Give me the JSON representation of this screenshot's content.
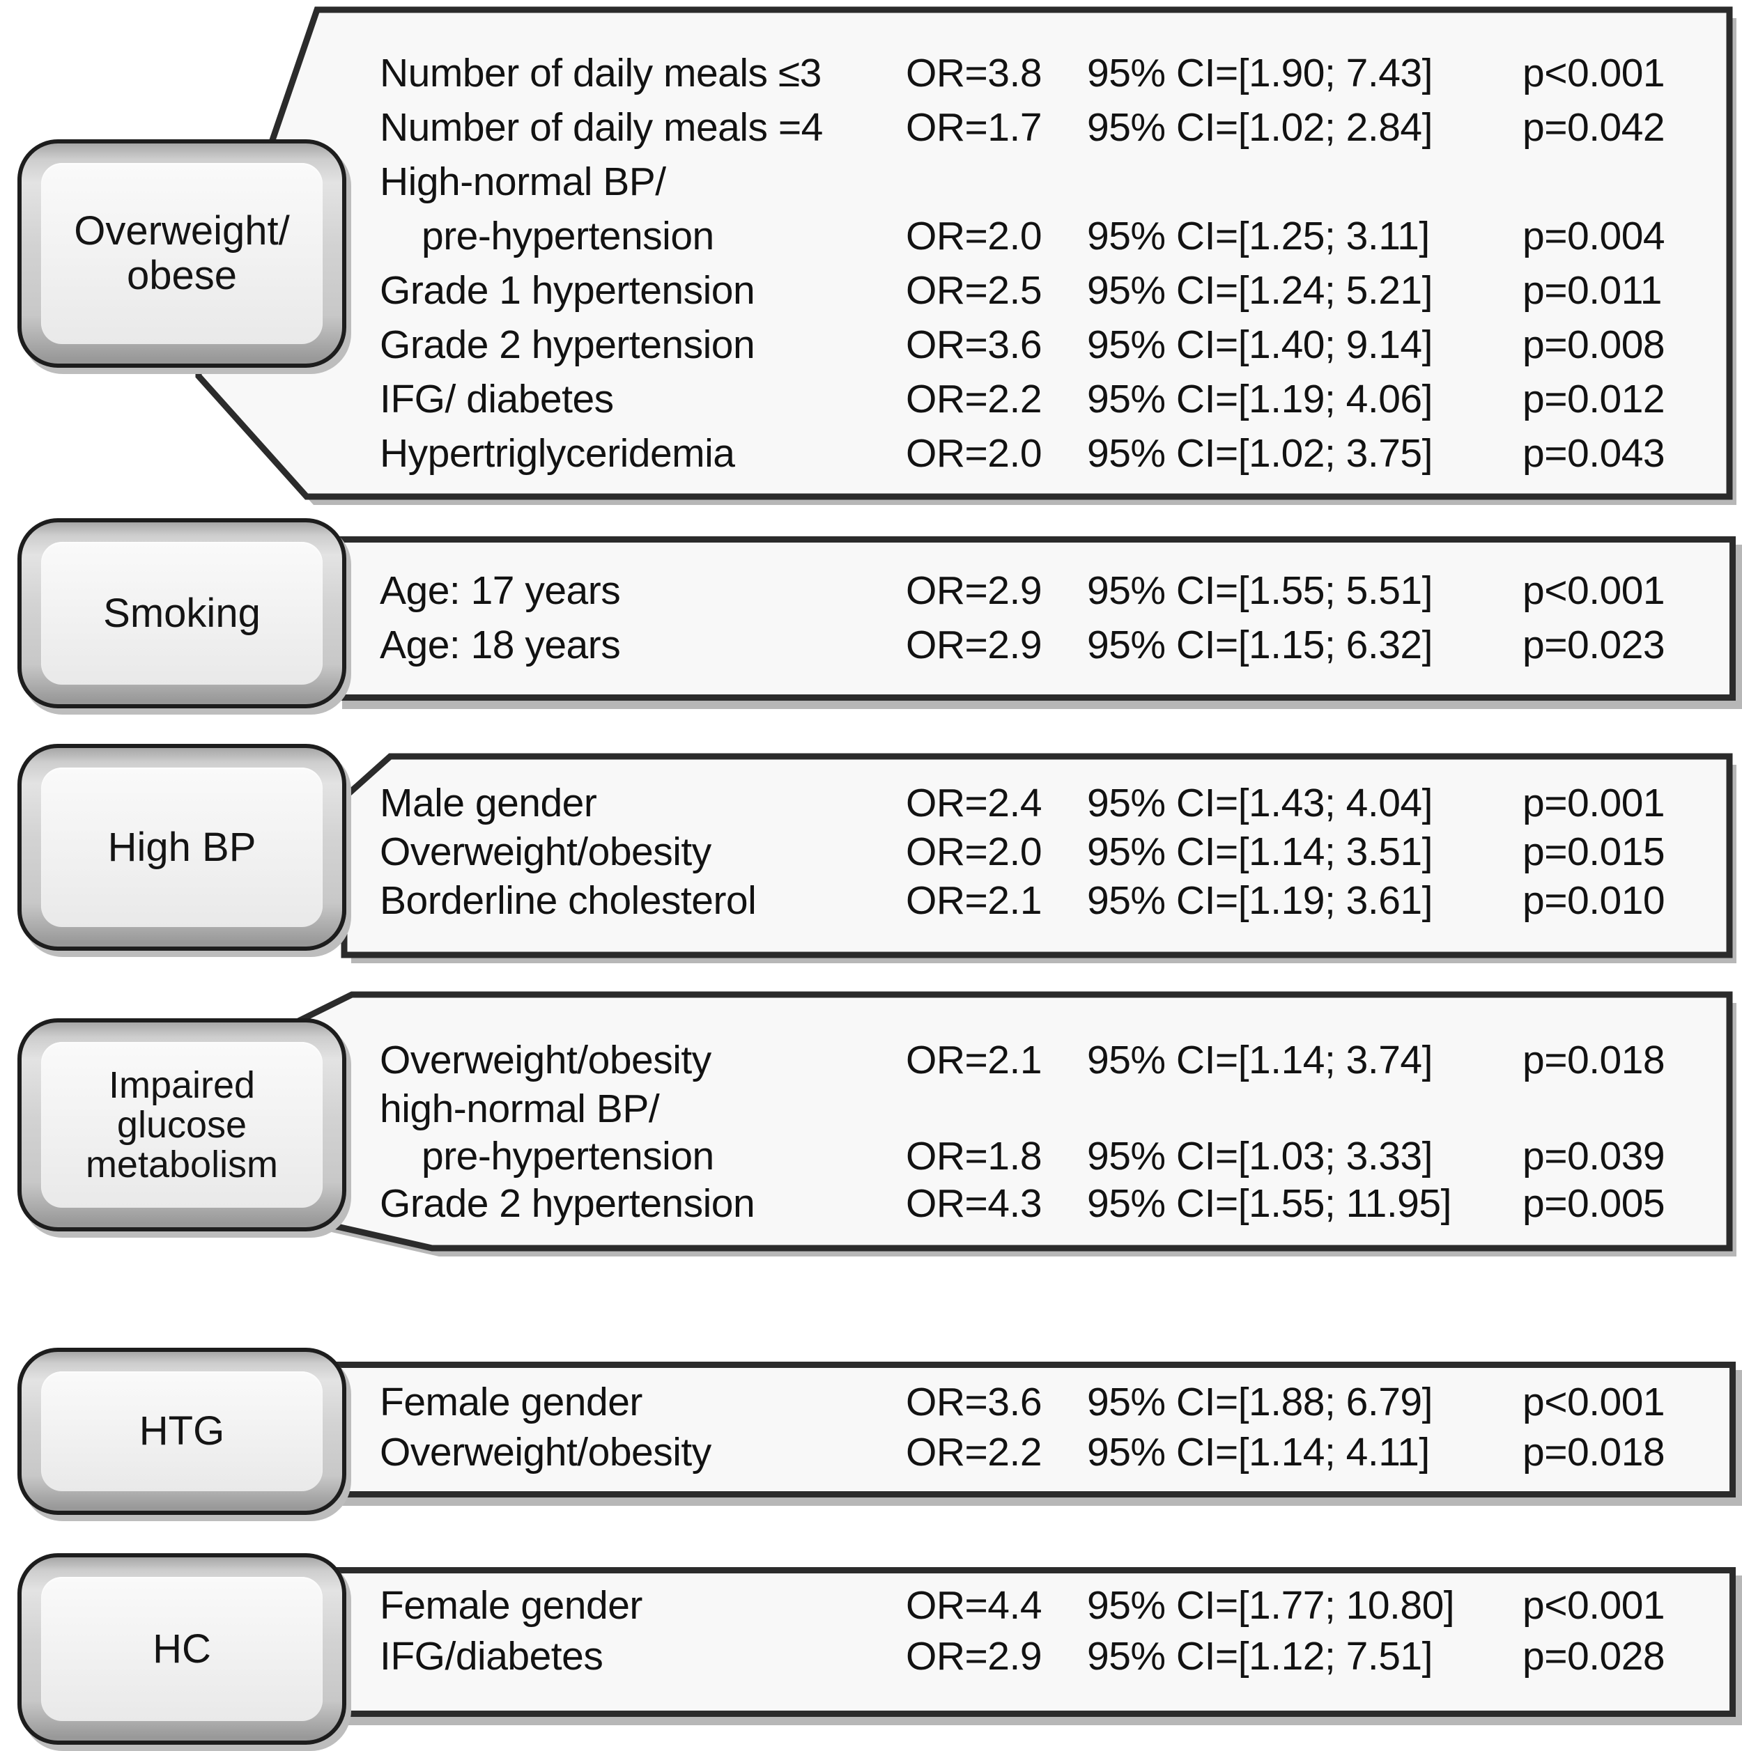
{
  "colors": {
    "panel_border": "#2b2b2b",
    "panel_fill": "#f8f8f8",
    "box_border": "#1d1d1d",
    "box_fill_outer": "#cccccc",
    "box_fill_inner": "#f1f1f1",
    "shadow": "#b7b7b7",
    "text": "#121212"
  },
  "sections": [
    {
      "label": "Overweight/\nobese",
      "rows": [
        {
          "factor": "Number of daily meals ≤3",
          "or": "OR=3.8",
          "ci": "95% CI=[1.90; 7.43]",
          "p": "p<0.001"
        },
        {
          "factor": "Number of daily meals =4",
          "or": "OR=1.7",
          "ci": "95% CI=[1.02; 2.84]",
          "p": "p=0.042"
        },
        {
          "factor": "High-normal BP/",
          "or": "",
          "ci": "",
          "p": ""
        },
        {
          "factor": "pre-hypertension",
          "indent": true,
          "or": "OR=2.0",
          "ci": "95% CI=[1.25; 3.11]",
          "p": "p=0.004"
        },
        {
          "factor": "Grade 1 hypertension",
          "or": "OR=2.5",
          "ci": "95% CI=[1.24; 5.21]",
          "p": "p=0.011"
        },
        {
          "factor": "Grade 2 hypertension",
          "or": "OR=3.6",
          "ci": "95% CI=[1.40; 9.14]",
          "p": "p=0.008"
        },
        {
          "factor": "IFG/ diabetes",
          "or": "OR=2.2",
          "ci": "95% CI=[1.19; 4.06]",
          "p": "p=0.012"
        },
        {
          "factor": "Hypertriglyceridemia",
          "or": "OR=2.0",
          "ci": "95% CI=[1.02; 3.75]",
          "p": "p=0.043"
        }
      ]
    },
    {
      "label": "Smoking",
      "rows": [
        {
          "factor": "Age: 17 years",
          "or": "OR=2.9",
          "ci": "95% CI=[1.55; 5.51]",
          "p": "p<0.001"
        },
        {
          "factor": "Age: 18 years",
          "or": "OR=2.9",
          "ci": "95% CI=[1.15; 6.32]",
          "p": "p=0.023"
        }
      ]
    },
    {
      "label": "High BP",
      "rows": [
        {
          "factor": "Male gender",
          "or": "OR=2.4",
          "ci": "95% CI=[1.43; 4.04]",
          "p": "p=0.001"
        },
        {
          "factor": "Overweight/obesity",
          "or": "OR=2.0",
          "ci": "95% CI=[1.14; 3.51]",
          "p": "p=0.015"
        },
        {
          "factor": "Borderline cholesterol",
          "or": "OR=2.1",
          "ci": "95% CI=[1.19; 3.61]",
          "p": "p=0.010"
        }
      ]
    },
    {
      "label": "Impaired\nglucose\nmetabolism",
      "rows": [
        {
          "factor": "Overweight/obesity",
          "or": "OR=2.1",
          "ci": "95% CI=[1.14; 3.74]",
          "p": "p=0.018"
        },
        {
          "factor": "high-normal BP/",
          "or": "",
          "ci": "",
          "p": ""
        },
        {
          "factor": "pre-hypertension",
          "indent": true,
          "or": "OR=1.8",
          "ci": "95% CI=[1.03; 3.33]",
          "p": "p=0.039"
        },
        {
          "factor": "Grade 2 hypertension",
          "or": "OR=4.3",
          "ci": "95% CI=[1.55; 11.95]",
          "p": "p=0.005"
        }
      ]
    },
    {
      "label": "HTG",
      "rows": [
        {
          "factor": "Female gender",
          "or": "OR=3.6",
          "ci": "95% CI=[1.88; 6.79]",
          "p": "p<0.001"
        },
        {
          "factor": "Overweight/obesity",
          "or": "OR=2.2",
          "ci": "95% CI=[1.14; 4.11]",
          "p": "p=0.018"
        }
      ]
    },
    {
      "label": "HC",
      "rows": [
        {
          "factor": "Female gender",
          "or": "OR=4.4",
          "ci": "95% CI=[1.77; 10.80]",
          "p": "p<0.001"
        },
        {
          "factor": "IFG/diabetes",
          "or": "OR=2.9",
          "ci": "95% CI=[1.12; 7.51]",
          "p": "p=0.028"
        }
      ]
    }
  ]
}
